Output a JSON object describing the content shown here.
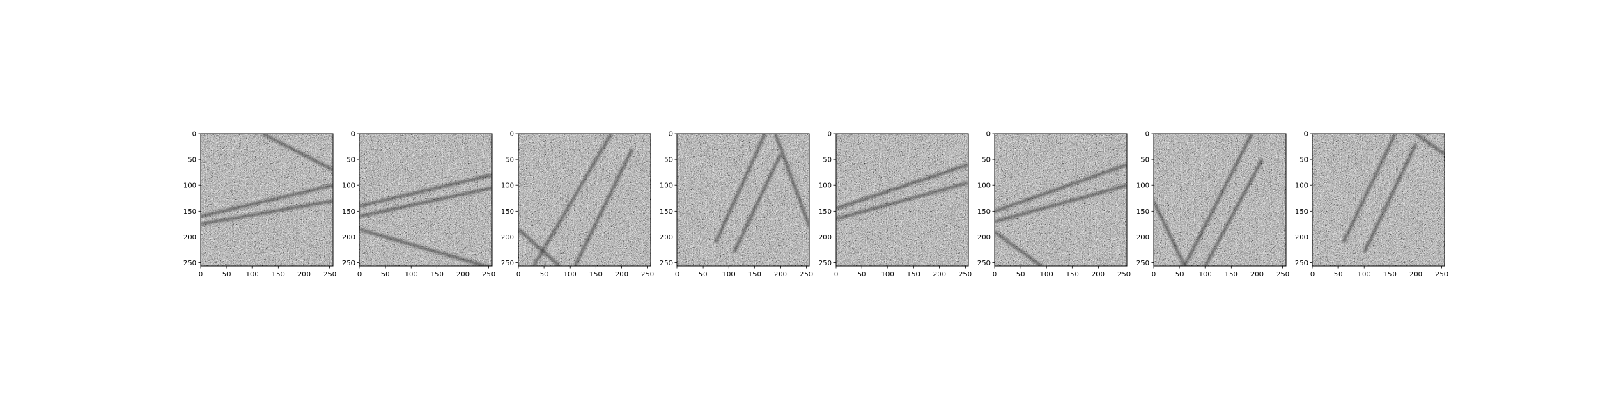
{
  "figure": {
    "panel_count": 8,
    "colormap": "gray",
    "image_size": 256,
    "panels": [
      {
        "name": "panel-1",
        "lines": [
          [
            [
              0,
              160
            ],
            [
              256,
              100
            ]
          ],
          [
            [
              0,
              175
            ],
            [
              256,
              130
            ]
          ],
          [
            [
              120,
              0
            ],
            [
              256,
              70
            ]
          ]
        ]
      },
      {
        "name": "panel-2",
        "lines": [
          [
            [
              0,
              140
            ],
            [
              256,
              80
            ]
          ],
          [
            [
              0,
              160
            ],
            [
              256,
              105
            ]
          ],
          [
            [
              0,
              185
            ],
            [
              256,
              260
            ]
          ]
        ]
      },
      {
        "name": "panel-3",
        "lines": [
          [
            [
              30,
              256
            ],
            [
              180,
              0
            ]
          ],
          [
            [
              110,
              256
            ],
            [
              220,
              30
            ]
          ],
          [
            [
              0,
              185
            ],
            [
              80,
              256
            ]
          ]
        ]
      },
      {
        "name": "panel-4",
        "lines": [
          [
            [
              75,
              210
            ],
            [
              170,
              0
            ]
          ],
          [
            [
              110,
              230
            ],
            [
              200,
              40
            ]
          ],
          [
            [
              190,
              0
            ],
            [
              256,
              180
            ]
          ]
        ]
      },
      {
        "name": "panel-5",
        "lines": [
          [
            [
              0,
              145
            ],
            [
              256,
              60
            ]
          ],
          [
            [
              0,
              165
            ],
            [
              256,
              95
            ]
          ]
        ]
      },
      {
        "name": "panel-6",
        "lines": [
          [
            [
              0,
              150
            ],
            [
              256,
              60
            ]
          ],
          [
            [
              0,
              170
            ],
            [
              256,
              100
            ]
          ],
          [
            [
              0,
              190
            ],
            [
              90,
              256
            ]
          ]
        ]
      },
      {
        "name": "panel-7",
        "lines": [
          [
            [
              60,
              256
            ],
            [
              190,
              0
            ]
          ],
          [
            [
              100,
              256
            ],
            [
              210,
              50
            ]
          ],
          [
            [
              0,
              130
            ],
            [
              60,
              256
            ]
          ]
        ]
      },
      {
        "name": "panel-8",
        "lines": [
          [
            [
              60,
              210
            ],
            [
              160,
              0
            ]
          ],
          [
            [
              100,
              230
            ],
            [
              200,
              20
            ]
          ],
          [
            [
              200,
              0
            ],
            [
              256,
              40
            ]
          ]
        ]
      }
    ],
    "ticks": [
      0,
      50,
      100,
      150,
      200,
      250
    ]
  }
}
